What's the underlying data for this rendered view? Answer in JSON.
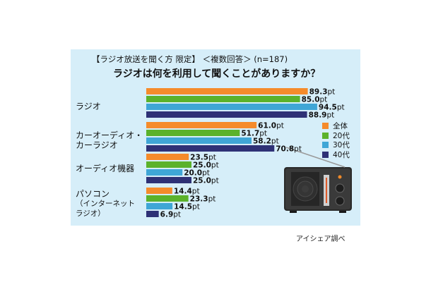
{
  "title_line1": "【ラジオ放送を聞く方 限定】 ＜複数回答＞ (n=187)",
  "title_line2": "ラジオは何を利用して聞くことがありますか？",
  "source": "アイシェア調べ",
  "colors": {
    "panel": "#d6eef9",
    "全体": "#f58b2b",
    "20代": "#5bb22b",
    "30代": "#3fa6d6",
    "40代": "#2e3176"
  },
  "chart_data": {
    "type": "bar",
    "orientation": "horizontal",
    "unit": "pt",
    "categories": [
      "ラジオ",
      "カーオーディオ・カーラジオ",
      "オーディオ機器",
      "パソコン（インターネットラジオ）"
    ],
    "category_lines": [
      [
        "ラジオ"
      ],
      [
        "カーオーディオ・",
        "カーラジオ"
      ],
      [
        "オーディオ機器"
      ],
      [
        "パソコン",
        "（インターネット",
        "ラジオ）"
      ]
    ],
    "series": [
      {
        "name": "全体",
        "values": [
          89.3,
          61.0,
          23.5,
          14.4
        ]
      },
      {
        "name": "20代",
        "values": [
          85.0,
          51.7,
          25.0,
          23.3
        ]
      },
      {
        "name": "30代",
        "values": [
          94.5,
          58.2,
          20.0,
          14.5
        ]
      },
      {
        "name": "40代",
        "values": [
          88.9,
          70.8,
          25.0,
          6.9
        ]
      }
    ],
    "labels": [
      [
        "89.3pt",
        "61.0pt",
        "23.5pt",
        "14.4pt"
      ],
      [
        "85.0pt",
        "51.7pt",
        "25.0pt",
        "23.3pt"
      ],
      [
        "94.5pt",
        "58.2pt",
        "20.0pt",
        "14.5pt"
      ],
      [
        "88.9pt",
        "70.8pt",
        "25.0pt",
        "6.9pt"
      ]
    ],
    "legend_position": "right",
    "xlim": [
      0,
      100
    ],
    "grid": false
  }
}
